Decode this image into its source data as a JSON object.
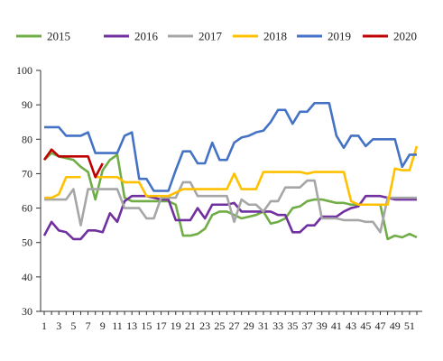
{
  "chart_data": {
    "type": "line",
    "title": "",
    "xlabel": "",
    "ylabel": "",
    "ylim": [
      30,
      100
    ],
    "yticks": [
      30,
      40,
      50,
      60,
      70,
      80,
      90,
      100
    ],
    "xlim": [
      1,
      52
    ],
    "xtick_labels": [
      "1",
      "3",
      "5",
      "7",
      "9",
      "11",
      "13",
      "15",
      "17",
      "19",
      "21",
      "23",
      "25",
      "27",
      "29",
      "31",
      "33",
      "35",
      "37",
      "39",
      "41",
      "43",
      "45",
      "47",
      "49",
      "51"
    ],
    "xtick_values": [
      1,
      3,
      5,
      7,
      9,
      11,
      13,
      15,
      17,
      19,
      21,
      23,
      25,
      27,
      29,
      31,
      33,
      35,
      37,
      39,
      41,
      43,
      45,
      47,
      49,
      51
    ],
    "grid": false,
    "legend": "top",
    "series": [
      {
        "name": "2015",
        "color": "#70AD47",
        "x": [
          1,
          2,
          3,
          4,
          5,
          6,
          7,
          8,
          9,
          10,
          11,
          12,
          13,
          14,
          15,
          16,
          17,
          18,
          19,
          20,
          21,
          22,
          23,
          24,
          25,
          26,
          27,
          28,
          29,
          30,
          31,
          32,
          33,
          34,
          35,
          36,
          37,
          38,
          39,
          40,
          41,
          42,
          43,
          44,
          45,
          46,
          47,
          48,
          49,
          50,
          51,
          52
        ],
        "values": [
          74,
          76,
          75,
          74.5,
          74,
          72,
          70.5,
          62.5,
          71,
          74,
          75.5,
          63,
          62,
          62,
          62,
          62,
          62,
          62,
          61,
          52,
          52,
          52.5,
          54,
          58,
          59,
          59,
          58,
          57,
          57.5,
          58,
          59,
          55.5,
          56,
          57,
          60,
          60.5,
          62,
          62.5,
          62.5,
          62,
          61.5,
          61.5,
          61,
          61,
          61,
          61,
          61,
          51,
          52,
          51.5,
          52.5,
          51.5
        ]
      },
      {
        "name": "2016",
        "color": "#7030A0",
        "x": [
          1,
          2,
          3,
          4,
          5,
          6,
          7,
          8,
          9,
          10,
          11,
          12,
          13,
          14,
          15,
          16,
          17,
          18,
          19,
          20,
          21,
          22,
          23,
          24,
          25,
          26,
          27,
          28,
          29,
          30,
          31,
          32,
          33,
          34,
          35,
          36,
          37,
          38,
          39,
          40,
          41,
          42,
          43,
          44,
          45,
          46,
          47,
          48,
          49,
          50,
          51,
          52
        ],
        "values": [
          52,
          56,
          53.5,
          53,
          51,
          51,
          53.5,
          53.5,
          53,
          58.5,
          56,
          62,
          63.5,
          63.5,
          63.5,
          63,
          62.5,
          62.5,
          56.5,
          56.5,
          56.5,
          60,
          57,
          61,
          61,
          61,
          61.5,
          59,
          59,
          59,
          59,
          59,
          58,
          58,
          53,
          53,
          55,
          55,
          57.5,
          57.5,
          57.5,
          59,
          60,
          60.5,
          63.5,
          63.5,
          63.5,
          63,
          62.5,
          62.5,
          62.5,
          62.5
        ]
      },
      {
        "name": "2017",
        "color": "#A6A6A6",
        "x": [
          1,
          2,
          3,
          4,
          5,
          6,
          7,
          8,
          9,
          10,
          11,
          12,
          13,
          14,
          15,
          16,
          17,
          18,
          19,
          20,
          21,
          22,
          23,
          24,
          25,
          26,
          27,
          28,
          29,
          30,
          31,
          32,
          33,
          34,
          35,
          36,
          37,
          38,
          39,
          40,
          41,
          42,
          43,
          44,
          45,
          46,
          47,
          48,
          49,
          50,
          51,
          52
        ],
        "values": [
          62.5,
          62.5,
          62.5,
          62.5,
          65.5,
          55,
          65.5,
          65.5,
          65.5,
          65.5,
          65.5,
          60,
          60,
          60,
          57,
          57,
          63,
          63,
          63,
          67.5,
          67.5,
          63.5,
          63.5,
          63.5,
          63.5,
          63.5,
          56,
          62.5,
          61,
          61,
          59,
          62,
          62,
          66,
          66,
          66,
          68,
          68,
          57,
          57,
          57,
          56.5,
          56.5,
          56.5,
          56,
          56,
          53,
          63,
          63,
          63,
          63,
          63
        ]
      },
      {
        "name": "2018",
        "color": "#FFC000",
        "x": [
          1,
          2,
          3,
          4,
          5,
          6,
          7,
          8,
          9,
          10,
          11,
          12,
          13,
          14,
          15,
          16,
          17,
          18,
          19,
          20,
          21,
          22,
          23,
          24,
          25,
          26,
          27,
          28,
          29,
          30,
          31,
          32,
          33,
          34,
          35,
          36,
          37,
          38,
          39,
          40,
          41,
          42,
          43,
          44,
          45,
          46,
          47,
          48,
          49,
          50,
          51,
          52
        ],
        "values": [
          63,
          63,
          64,
          69,
          69,
          69,
          null,
          69,
          69,
          69,
          69,
          67.5,
          67.5,
          67.5,
          63.5,
          63.5,
          63.5,
          63.5,
          64.5,
          65.5,
          65.5,
          65.5,
          65.5,
          65.5,
          65.5,
          65.5,
          70,
          65.5,
          65.5,
          65.5,
          70.5,
          70.5,
          70.5,
          70.5,
          70.5,
          70.5,
          70,
          70.5,
          70.5,
          70.5,
          70.5,
          70.5,
          62,
          61,
          61,
          61,
          61,
          61,
          71.5,
          71,
          71,
          78
        ]
      },
      {
        "name": "2019",
        "color": "#4472C4",
        "x": [
          1,
          2,
          3,
          4,
          5,
          6,
          7,
          8,
          9,
          10,
          11,
          12,
          13,
          14,
          15,
          16,
          17,
          18,
          19,
          20,
          21,
          22,
          23,
          24,
          25,
          26,
          27,
          28,
          29,
          30,
          31,
          32,
          33,
          34,
          35,
          36,
          37,
          38,
          39,
          40,
          41,
          42,
          43,
          44,
          45,
          46,
          47,
          48,
          49,
          50,
          51,
          52
        ],
        "values": [
          83.5,
          83.5,
          83.5,
          81,
          81,
          81,
          82,
          76,
          76,
          76,
          76,
          81,
          82,
          68.5,
          68.5,
          65,
          65,
          65,
          71,
          76.5,
          76.5,
          73,
          73,
          79,
          74,
          74,
          79,
          80.5,
          81,
          82,
          82.5,
          85,
          88.5,
          88.5,
          84.5,
          88,
          88,
          90.5,
          90.5,
          90.5,
          81,
          77.5,
          81,
          81,
          78,
          80,
          80,
          80,
          80,
          72,
          75.5,
          75.5
        ]
      },
      {
        "name": "2020",
        "color": "#C00000",
        "x": [
          1,
          2,
          3,
          4,
          5,
          6,
          7,
          8,
          9
        ],
        "values": [
          74,
          77,
          75,
          75,
          75,
          75,
          75,
          69,
          73
        ]
      }
    ]
  }
}
